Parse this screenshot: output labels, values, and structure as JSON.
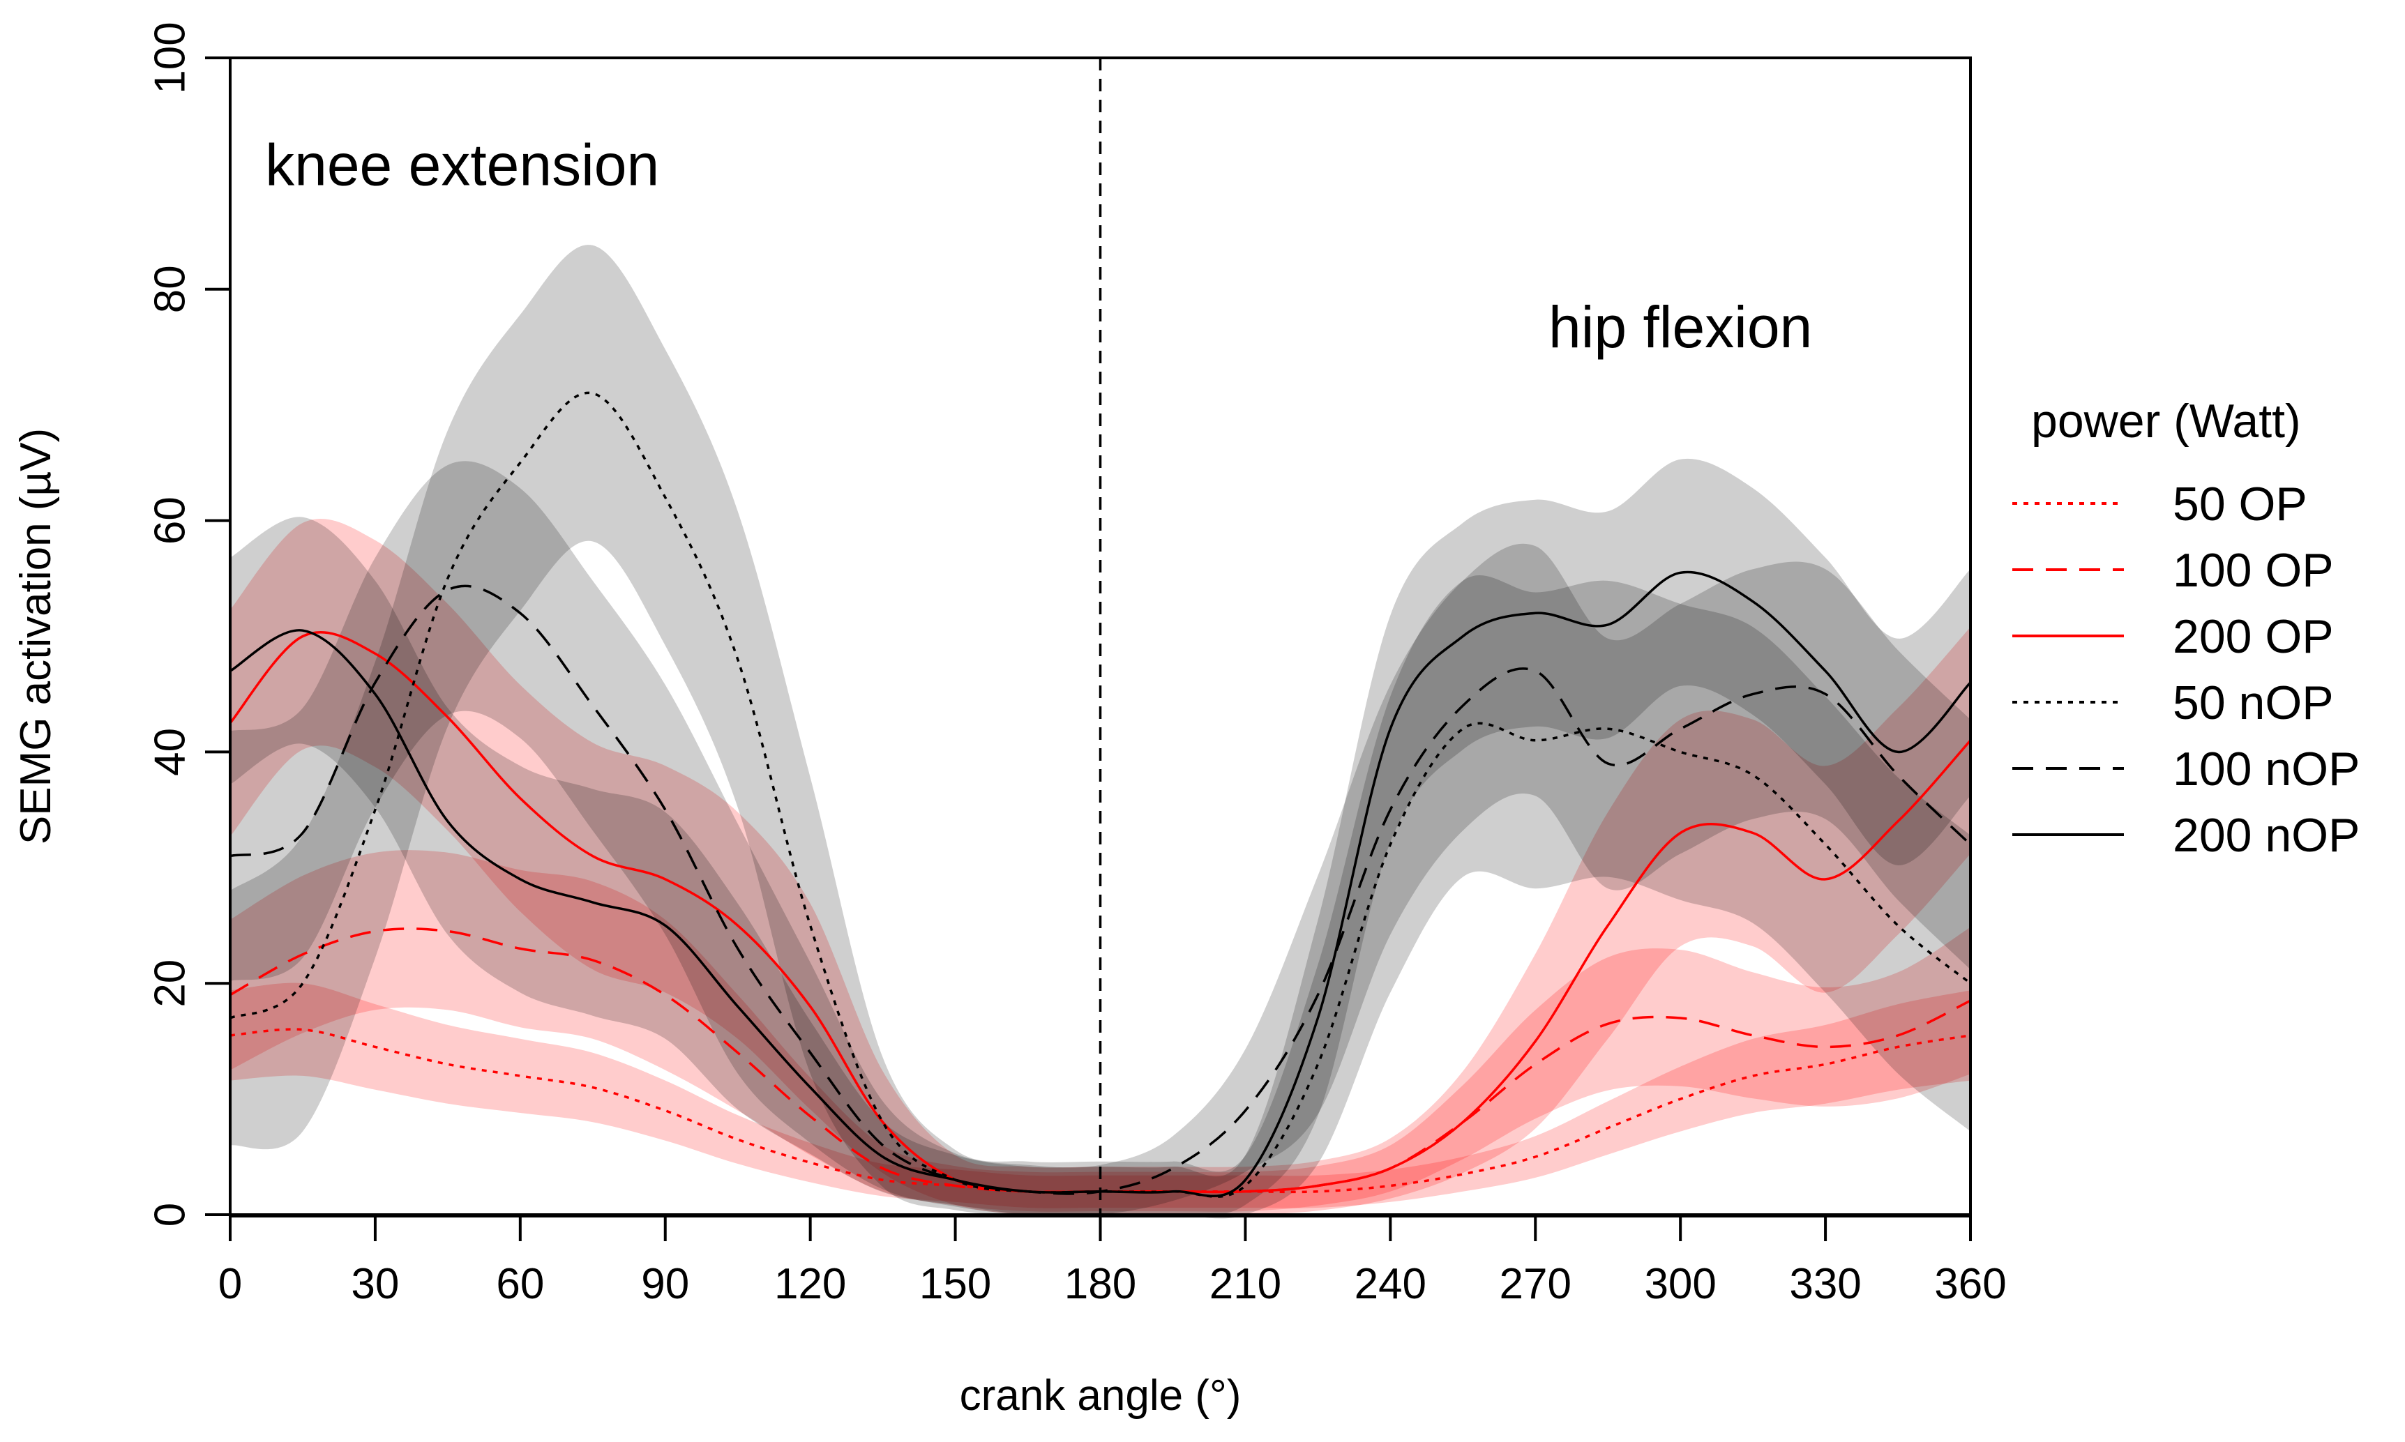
{
  "chart_data": {
    "type": "line",
    "title": "",
    "xlabel": "crank angle (°)",
    "ylabel": "SEMG activation (µV)",
    "xlim": [
      0,
      360
    ],
    "ylim": [
      0,
      100
    ],
    "x_ticks": [
      "0",
      "30",
      "60",
      "90",
      "120",
      "150",
      "180",
      "210",
      "240",
      "270",
      "300",
      "330",
      "360"
    ],
    "y_ticks": [
      "0",
      "20",
      "40",
      "60",
      "80",
      "100"
    ],
    "annotations": [
      {
        "text": "knee extension",
        "x": 48,
        "y": 89
      },
      {
        "text": "hip flexion",
        "x": 300,
        "y": 75
      }
    ],
    "vline": {
      "x": 180,
      "style": "dashed"
    },
    "legend": {
      "title": "power (Watt)",
      "position": "right"
    },
    "x": [
      0,
      15,
      30,
      45,
      60,
      75,
      90,
      105,
      120,
      135,
      150,
      165,
      180,
      195,
      210,
      225,
      240,
      255,
      270,
      285,
      300,
      315,
      330,
      345,
      360
    ],
    "series": [
      {
        "name": "50 OP",
        "color": "#ff0000",
        "dash": "dotted",
        "band_width": 4,
        "values": [
          15.5,
          16,
          14.5,
          13,
          12,
          11,
          9,
          6.5,
          4.5,
          3,
          2.5,
          2,
          2,
          2,
          2,
          2,
          2.5,
          3.5,
          5,
          7.5,
          10,
          12,
          13,
          14.5,
          15.5
        ]
      },
      {
        "name": "100 OP",
        "color": "#ff0000",
        "dash": "dashed",
        "band_width": 6,
        "values": [
          19,
          22.5,
          24.5,
          24.5,
          23,
          22,
          19,
          14,
          8.5,
          4,
          2.5,
          2,
          2,
          2,
          2,
          2.5,
          4,
          8,
          13,
          16.5,
          17,
          15.5,
          14.5,
          15.5,
          18.5
        ]
      },
      {
        "name": "200 OP",
        "color": "#ff0000",
        "dash": "solid",
        "band_width": 9,
        "values": [
          42.5,
          50,
          48.5,
          43,
          36,
          31,
          29,
          25,
          18,
          8,
          3,
          2,
          2,
          2,
          2,
          2.5,
          4,
          8,
          15,
          25,
          33,
          33,
          29,
          34,
          41
        ]
      },
      {
        "name": "50 nOP",
        "color": "#000000",
        "dash": "dotted",
        "band_width": 12,
        "values": [
          17,
          20,
          35,
          55,
          65,
          71,
          62,
          48,
          25,
          8,
          3,
          2,
          2,
          2,
          2.5,
          13,
          32,
          42,
          41,
          42,
          40,
          38,
          32,
          25,
          20
        ]
      },
      {
        "name": "100 nOP",
        "color": "#000000",
        "dash": "dashed",
        "band_width": 10,
        "values": [
          31,
          33,
          46,
          54,
          52,
          44,
          35,
          23,
          14,
          6,
          3,
          2,
          2,
          4,
          9,
          19,
          35,
          44,
          47,
          39,
          42,
          45,
          45,
          38,
          32
        ]
      },
      {
        "name": "200 nOP",
        "color": "#000000",
        "dash": "solid",
        "band_width": 9,
        "values": [
          47,
          50.5,
          45,
          34,
          29,
          27,
          25,
          18,
          11,
          5,
          3,
          2,
          2,
          2,
          3,
          17,
          42,
          50,
          52,
          51,
          55.5,
          53,
          47,
          40,
          46
        ]
      }
    ]
  }
}
